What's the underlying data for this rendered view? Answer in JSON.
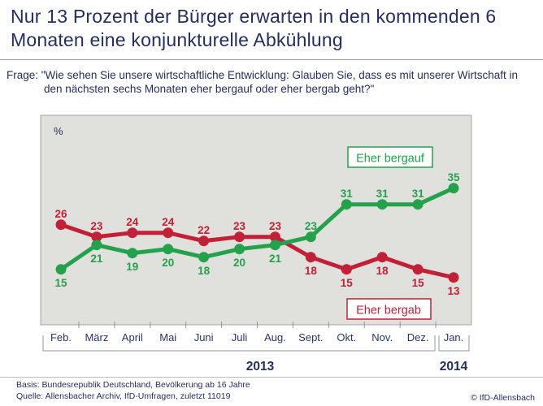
{
  "header": {
    "title": "Nur 13 Prozent der Bürger erwarten in den kommenden 6 Monaten eine konjunkturelle Abkühlung",
    "question": "Frage: \"Wie sehen Sie unsere wirtschaftliche Entwicklung: Glauben Sie, dass es mit unserer Wirtschaft in den nächsten sechs Monaten eher bergauf oder eher bergab geht?\""
  },
  "chart_data": {
    "type": "line",
    "unit_label": "%",
    "categories": [
      "Feb.",
      "März",
      "April",
      "Mai",
      "Juni",
      "Juli",
      "Aug.",
      "Sept.",
      "Okt.",
      "Nov.",
      "Dez.",
      "Jan."
    ],
    "year_groups": [
      {
        "label": "2013",
        "from_index": 0,
        "to_index": 10
      },
      {
        "label": "2014",
        "from_index": 11,
        "to_index": 11
      }
    ],
    "series": [
      {
        "name": "Eher bergab",
        "color": "#c22037",
        "values": [
          26,
          23,
          24,
          24,
          22,
          23,
          23,
          18,
          15,
          18,
          15,
          13
        ],
        "label_side": [
          "above",
          "above",
          "above",
          "above",
          "above",
          "above",
          "above",
          "below",
          "below",
          "below",
          "below",
          "below"
        ]
      },
      {
        "name": "Eher bergauf",
        "color": "#23a14b",
        "values": [
          15,
          21,
          19,
          20,
          18,
          20,
          21,
          23,
          31,
          31,
          31,
          35
        ],
        "label_side": [
          "below",
          "below",
          "below",
          "below",
          "below",
          "below",
          "below",
          "above",
          "above",
          "above",
          "above",
          "above"
        ]
      }
    ],
    "ylim": [
      0,
      52
    ],
    "grid": false,
    "legend_position": "inside-boxes"
  },
  "footer": {
    "basis": "Basis: Bundesrepublik Deutschland, Bevölkerung ab 16 Jahre",
    "quelle": "Quelle: Allensbacher Archiv, IfD-Umfragen, zuletzt 11019",
    "copyright": "© IfD-Allensbach"
  },
  "colors": {
    "accent_navy": "#242e60",
    "positive_green": "#23a14b",
    "negative_red": "#c22037",
    "plot_background": "#e0e0dd"
  }
}
